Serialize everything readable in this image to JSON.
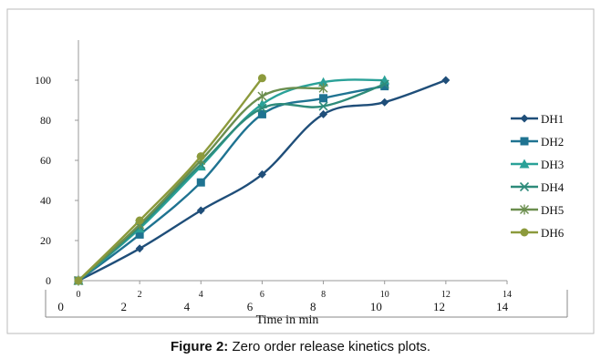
{
  "figure": {
    "caption_label": "Figure 2:",
    "caption_text": " Zero order release kinetics plots."
  },
  "chart_data": {
    "type": "line",
    "title": "",
    "xlabel": "Time in min",
    "ylabel": "",
    "xlim": [
      0,
      14
    ],
    "ylim": [
      0,
      120
    ],
    "x_ticks": [
      0,
      2,
      4,
      6,
      8,
      10,
      12,
      14
    ],
    "y_ticks": [
      0,
      20,
      40,
      60,
      80,
      100
    ],
    "y_tick_labels": [
      "0",
      "20",
      "40",
      "60",
      "80",
      "100"
    ],
    "grid": false,
    "legend": "right",
    "series": [
      {
        "name": "DH1",
        "color": "#1f4e79",
        "marker": "diamond",
        "x": [
          0,
          2,
          4,
          6,
          8,
          10,
          12
        ],
        "y": [
          0,
          16,
          35,
          53,
          83,
          89,
          100
        ]
      },
      {
        "name": "DH2",
        "color": "#1f7391",
        "marker": "square",
        "x": [
          0,
          2,
          4,
          6,
          8,
          10
        ],
        "y": [
          0,
          23,
          49,
          83,
          91,
          97
        ]
      },
      {
        "name": "DH3",
        "color": "#2aa198",
        "marker": "triangle",
        "x": [
          0,
          2,
          4,
          6,
          8,
          10
        ],
        "y": [
          0,
          26,
          57,
          88,
          99,
          100
        ]
      },
      {
        "name": "DH4",
        "color": "#2e8b7a",
        "marker": "x",
        "x": [
          0,
          2,
          4,
          6,
          8,
          10
        ],
        "y": [
          0,
          27,
          58,
          86,
          87,
          98
        ]
      },
      {
        "name": "DH5",
        "color": "#6b8e4e",
        "marker": "star",
        "x": [
          0,
          2,
          4,
          6,
          8
        ],
        "y": [
          0,
          28,
          60,
          92,
          96
        ]
      },
      {
        "name": "DH6",
        "color": "#8c9a3c",
        "marker": "circle",
        "x": [
          0,
          2,
          4,
          6
        ],
        "y": [
          0,
          30,
          62,
          101
        ]
      }
    ]
  }
}
